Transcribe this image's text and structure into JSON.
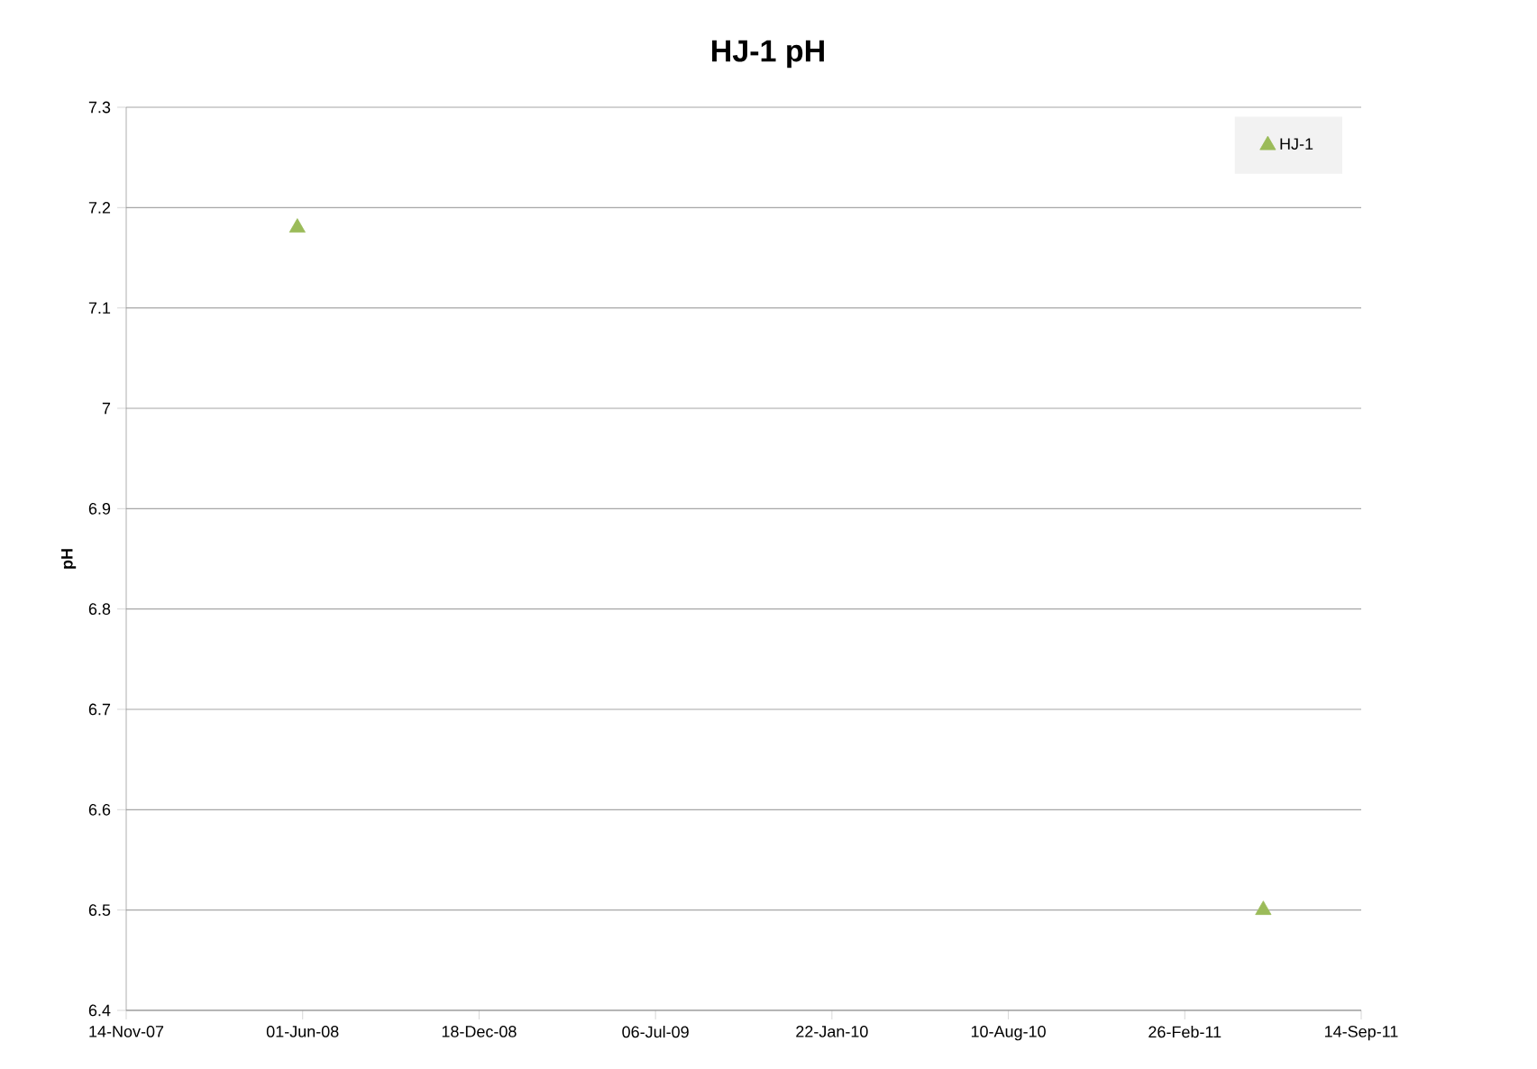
{
  "chart_data": {
    "type": "scatter",
    "title": "HJ-1 pH",
    "ylabel": "pH",
    "series": [
      {
        "name": "HJ-1",
        "color": "#9bbb59",
        "x": [
          "2008-05-26",
          "2011-05-26"
        ],
        "values": [
          7.18,
          6.5
        ]
      }
    ],
    "xlim": [
      "2007-11-14",
      "2011-09-14"
    ],
    "xticks": [
      {
        "value": "2007-11-14",
        "label": "14-Nov-07"
      },
      {
        "value": "2008-06-01",
        "label": "01-Jun-08"
      },
      {
        "value": "2008-12-18",
        "label": "18-Dec-08"
      },
      {
        "value": "2009-07-06",
        "label": "06-Jul-09"
      },
      {
        "value": "2010-01-22",
        "label": "22-Jan-10"
      },
      {
        "value": "2010-08-10",
        "label": "10-Aug-10"
      },
      {
        "value": "2011-02-26",
        "label": "26-Feb-11"
      },
      {
        "value": "2011-09-14",
        "label": "14-Sep-11"
      }
    ],
    "ylim": [
      6.4,
      7.3
    ],
    "yticks": [
      6.4,
      6.5,
      6.6,
      6.7,
      6.8,
      6.9,
      7,
      7.1,
      7.2,
      7.3
    ],
    "grid": "y",
    "legend": "top right",
    "marker": "triangle"
  }
}
